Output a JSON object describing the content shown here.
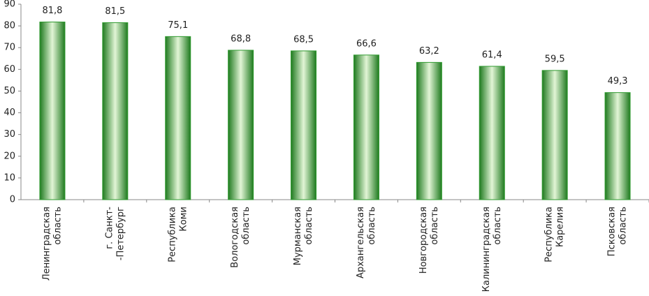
{
  "chart_data": {
    "type": "bar",
    "categories": [
      [
        "Ленинградская",
        "область"
      ],
      [
        "г. Санкт-",
        "-Петербург"
      ],
      [
        "Республика",
        "Коми"
      ],
      [
        "Вологодская",
        "область"
      ],
      [
        "Мурманская",
        "область"
      ],
      [
        "Архангельская",
        "область"
      ],
      [
        "Новгородская",
        "область"
      ],
      [
        "Калининградская",
        "область"
      ],
      [
        "Республика",
        "Карелия"
      ],
      [
        "Псковская",
        "область"
      ]
    ],
    "values": [
      81.8,
      81.5,
      75.1,
      68.8,
      68.5,
      66.6,
      63.2,
      61.4,
      59.5,
      49.3
    ],
    "value_labels": [
      "81,8",
      "81,5",
      "75,1",
      "68,8",
      "68,5",
      "66,6",
      "63,2",
      "61,4",
      "59,5",
      "49,3"
    ],
    "color": "#2f9a2f",
    "ylim": [
      0,
      90
    ],
    "yticks": [
      0,
      10,
      20,
      30,
      40,
      50,
      60,
      70,
      80,
      90
    ],
    "grid": false
  }
}
